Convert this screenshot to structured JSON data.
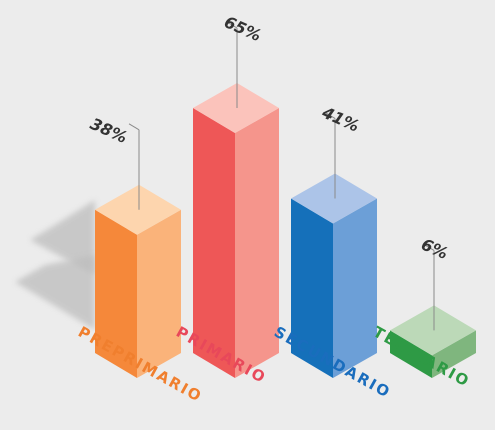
{
  "chart_data": {
    "type": "bar",
    "title": "",
    "xlabel": "",
    "ylabel": "",
    "ylim": [
      0,
      65
    ],
    "grid": false,
    "legend": "none",
    "categories": [
      "PREPRIMARIO",
      "PRIMARIO",
      "SECUNDARIO",
      "TERCIARIO"
    ],
    "values": [
      38,
      65,
      41,
      6
    ],
    "labels": [
      "38%",
      "65%",
      "41%",
      "6%"
    ],
    "colors": [
      {
        "front": "#f5883a",
        "side": "#fab37a",
        "top": "#fdd5ae",
        "label": "#f07f2e"
      },
      {
        "front": "#ee5757",
        "side": "#f5958c",
        "top": "#fbc3bb",
        "label": "#e8485a"
      },
      {
        "front": "#1570ba",
        "side": "#6c9fd7",
        "top": "#acc4e8",
        "label": "#1a6dbd"
      },
      {
        "front": "#2e9a45",
        "side": "#7fb67e",
        "top": "#bcd9b8",
        "label": "#2e9a45"
      }
    ]
  }
}
